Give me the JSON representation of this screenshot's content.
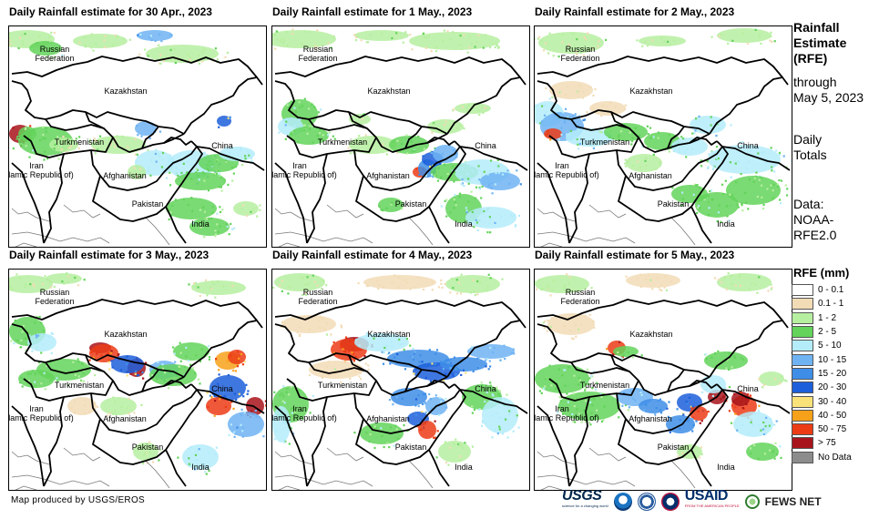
{
  "panels": [
    {
      "title": "Daily Rainfall estimate for 30 Apr., 2023"
    },
    {
      "title": "Daily Rainfall estimate for 1 May., 2023"
    },
    {
      "title": "Daily Rainfall estimate for 2 May., 2023"
    },
    {
      "title": "Daily Rainfall estimate for 3 May., 2023"
    },
    {
      "title": "Daily Rainfall estimate for 4 May., 2023"
    },
    {
      "title": "Daily Rainfall estimate for 5 May., 2023"
    }
  ],
  "country_labels": {
    "russia": "Russian\nFederation",
    "kazakhstan": "Kazakhstan",
    "turkmenistan": "Turkmenistan",
    "iran": "Iran\n(Islamic Republic of)",
    "afghanistan": "Afghanistan",
    "pakistan": "Pakistan",
    "china": "China",
    "india": "India"
  },
  "sidebar": {
    "title_line1": "Rainfall",
    "title_line2": "Estimate",
    "title_line3": "(RFE)",
    "through_line1": "through",
    "through_line2": "May 5, 2023",
    "daily_line1": "Daily",
    "daily_line2": "Totals",
    "data_line1": "Data:",
    "data_line2": "NOAA-",
    "data_line3": "RFE2.0"
  },
  "legend": {
    "title": "RFE (mm)",
    "items": [
      {
        "label": "0 - 0.1",
        "color": "#ffffff"
      },
      {
        "label": "0.1 - 1",
        "color": "#f2dcb6"
      },
      {
        "label": "1 - 2",
        "color": "#b6efa0"
      },
      {
        "label": "2 - 5",
        "color": "#63d35b"
      },
      {
        "label": "5 - 10",
        "color": "#b4ecfa"
      },
      {
        "label": "10 - 15",
        "color": "#6fb3f3"
      },
      {
        "label": "15 - 20",
        "color": "#3e8ee8"
      },
      {
        "label": "20 - 30",
        "color": "#1d5fdb"
      },
      {
        "label": "30 - 40",
        "color": "#f9e27a"
      },
      {
        "label": "40 - 50",
        "color": "#f7a11a"
      },
      {
        "label": "50 - 75",
        "color": "#ec3c16"
      },
      {
        "label": "> 75",
        "color": "#a8141b"
      },
      {
        "label": "No Data",
        "color": "#8c8c8c"
      }
    ]
  },
  "footer": {
    "credit": "Map produced by USGS/EROS",
    "logos": {
      "usgs": "USGS",
      "usgs_tagline": "science for a changing world",
      "usaid": "USAID",
      "usaid_tagline": "FROM THE AMERICAN PEOPLE",
      "fews": "FEWS NET"
    }
  }
}
